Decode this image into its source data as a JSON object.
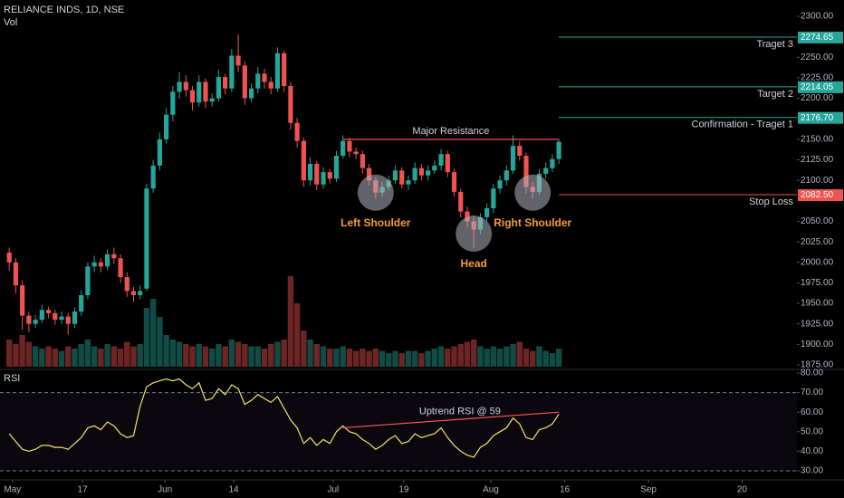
{
  "chart_data": {
    "type": "candlestick",
    "title": "RELIANCE INDS, 1D, NSE",
    "volume_label": "Vol",
    "rsi_label": "RSI",
    "up_color": "#26a69a",
    "down_color": "#ef5350",
    "xlim": [
      -1,
      119
    ],
    "xticks": [
      {
        "value": 0.5,
        "label": "May"
      },
      {
        "value": 11.2,
        "label": "17"
      },
      {
        "value": 23.8,
        "label": "Jun"
      },
      {
        "value": 34.3,
        "label": "14"
      },
      {
        "value": 49.5,
        "label": "Jul"
      },
      {
        "value": 60.3,
        "label": "19"
      },
      {
        "value": 73.6,
        "label": "Aug"
      },
      {
        "value": 84.9,
        "label": "16"
      },
      {
        "value": 97.7,
        "label": "Sep"
      },
      {
        "value": 112,
        "label": "20"
      }
    ],
    "ylim": [
      1875,
      2300
    ],
    "yticks": [
      {
        "value": 2300,
        "label": "2300.00"
      },
      {
        "value": 2250,
        "label": "2250.00"
      },
      {
        "value": 2225,
        "label": "2225.00"
      },
      {
        "value": 2200,
        "label": "2200.00"
      },
      {
        "value": 2150,
        "label": "2150.00"
      },
      {
        "value": 2125,
        "label": "2125.00"
      },
      {
        "value": 2100,
        "label": "2100.00"
      },
      {
        "value": 2050,
        "label": "2050.00"
      },
      {
        "value": 2025,
        "label": "2025.00"
      },
      {
        "value": 2000,
        "label": "2000.00"
      },
      {
        "value": 1975,
        "label": "1975.00"
      },
      {
        "value": 1950,
        "label": "1950.00"
      },
      {
        "value": 1925,
        "label": "1925.00"
      },
      {
        "value": 1900,
        "label": "1900.00"
      },
      {
        "value": 1875,
        "label": "1875.00"
      }
    ],
    "ohlc": [
      [
        2012,
        2018,
        1990,
        2000
      ],
      [
        2000,
        2005,
        1962,
        1972
      ],
      [
        1972,
        1978,
        1918,
        1935
      ],
      [
        1935,
        1940,
        1915,
        1925
      ],
      [
        1925,
        1936,
        1920,
        1930
      ],
      [
        1930,
        1948,
        1926,
        1942
      ],
      [
        1942,
        1946,
        1932,
        1938
      ],
      [
        1938,
        1942,
        1924,
        1930
      ],
      [
        1930,
        1940,
        1925,
        1934
      ],
      [
        1934,
        1938,
        1912,
        1925
      ],
      [
        1925,
        1945,
        1920,
        1940
      ],
      [
        1940,
        1966,
        1935,
        1960
      ],
      [
        1960,
        2000,
        1955,
        1995
      ],
      [
        1995,
        2008,
        1988,
        2000
      ],
      [
        2000,
        2005,
        1988,
        1995
      ],
      [
        1995,
        2016,
        1990,
        2010
      ],
      [
        2010,
        2018,
        1998,
        2005
      ],
      [
        2005,
        2010,
        1975,
        1982
      ],
      [
        1982,
        1988,
        1958,
        1965
      ],
      [
        1965,
        1970,
        1952,
        1960
      ],
      [
        1960,
        1972,
        1955,
        1965
      ],
      [
        1968,
        2096,
        1965,
        2090
      ],
      [
        2090,
        2125,
        2085,
        2118
      ],
      [
        2118,
        2158,
        2112,
        2150
      ],
      [
        2150,
        2188,
        2145,
        2180
      ],
      [
        2180,
        2215,
        2172,
        2208
      ],
      [
        2208,
        2232,
        2200,
        2220
      ],
      [
        2220,
        2228,
        2202,
        2210
      ],
      [
        2210,
        2215,
        2185,
        2195
      ],
      [
        2195,
        2228,
        2190,
        2220
      ],
      [
        2220,
        2224,
        2188,
        2196
      ],
      [
        2196,
        2206,
        2190,
        2200
      ],
      [
        2200,
        2235,
        2196,
        2226
      ],
      [
        2226,
        2230,
        2205,
        2212
      ],
      [
        2212,
        2260,
        2208,
        2252
      ],
      [
        2252,
        2278,
        2232,
        2240
      ],
      [
        2240,
        2245,
        2192,
        2200
      ],
      [
        2200,
        2218,
        2195,
        2212
      ],
      [
        2212,
        2238,
        2206,
        2230
      ],
      [
        2230,
        2236,
        2212,
        2220
      ],
      [
        2220,
        2226,
        2205,
        2212
      ],
      [
        2212,
        2262,
        2208,
        2255
      ],
      [
        2255,
        2258,
        2208,
        2215
      ],
      [
        2215,
        2220,
        2162,
        2170
      ],
      [
        2170,
        2176,
        2140,
        2148
      ],
      [
        2148,
        2152,
        2092,
        2100
      ],
      [
        2100,
        2128,
        2094,
        2120
      ],
      [
        2120,
        2124,
        2088,
        2095
      ],
      [
        2095,
        2116,
        2090,
        2110
      ],
      [
        2110,
        2114,
        2096,
        2102
      ],
      [
        2102,
        2136,
        2098,
        2130
      ],
      [
        2130,
        2155,
        2126,
        2148
      ],
      [
        2148,
        2152,
        2128,
        2135
      ],
      [
        2135,
        2140,
        2126,
        2132
      ],
      [
        2132,
        2136,
        2108,
        2115
      ],
      [
        2115,
        2120,
        2094,
        2100
      ],
      [
        2100,
        2104,
        2078,
        2085
      ],
      [
        2085,
        2098,
        2080,
        2092
      ],
      [
        2092,
        2106,
        2088,
        2100
      ],
      [
        2100,
        2118,
        2096,
        2112
      ],
      [
        2112,
        2116,
        2090,
        2095
      ],
      [
        2095,
        2106,
        2088,
        2100
      ],
      [
        2100,
        2122,
        2096,
        2115
      ],
      [
        2115,
        2120,
        2100,
        2106
      ],
      [
        2106,
        2118,
        2100,
        2112
      ],
      [
        2112,
        2124,
        2108,
        2118
      ],
      [
        2118,
        2138,
        2112,
        2132
      ],
      [
        2132,
        2136,
        2104,
        2110
      ],
      [
        2110,
        2114,
        2080,
        2086
      ],
      [
        2086,
        2090,
        2055,
        2062
      ],
      [
        2062,
        2068,
        2042,
        2050
      ],
      [
        2050,
        2056,
        2018,
        2040
      ],
      [
        2040,
        2060,
        2034,
        2055
      ],
      [
        2055,
        2072,
        2050,
        2066
      ],
      [
        2066,
        2096,
        2060,
        2090
      ],
      [
        2090,
        2106,
        2084,
        2100
      ],
      [
        2100,
        2118,
        2094,
        2112
      ],
      [
        2112,
        2155,
        2108,
        2142
      ],
      [
        2142,
        2148,
        2124,
        2130
      ],
      [
        2130,
        2134,
        2084,
        2092
      ],
      [
        2092,
        2098,
        2078,
        2086
      ],
      [
        2086,
        2114,
        2082,
        2108
      ],
      [
        2108,
        2122,
        2102,
        2115
      ],
      [
        2115,
        2132,
        2110,
        2126
      ],
      [
        2126,
        2150,
        2120,
        2147
      ]
    ],
    "volume": [
      12,
      10,
      14,
      11,
      9,
      8,
      9,
      8,
      7,
      9,
      8,
      10,
      12,
      9,
      8,
      10,
      9,
      8,
      11,
      9,
      10,
      26,
      30,
      22,
      14,
      12,
      11,
      10,
      9,
      10,
      9,
      8,
      10,
      9,
      12,
      11,
      10,
      9,
      9,
      8,
      10,
      11,
      12,
      40,
      28,
      16,
      12,
      10,
      9,
      8,
      8,
      9,
      8,
      7,
      8,
      7,
      8,
      7,
      6,
      7,
      6,
      7,
      7,
      6,
      7,
      8,
      9,
      8,
      9,
      10,
      11,
      12,
      9,
      8,
      9,
      8,
      9,
      10,
      11,
      8,
      7,
      9,
      7,
      6,
      8
    ],
    "rsi": {
      "color": "#f5e663",
      "values": [
        49,
        45,
        41,
        40,
        41,
        43,
        43,
        42,
        42,
        41,
        44,
        47,
        52,
        53,
        51,
        55,
        53,
        49,
        47,
        48,
        63,
        73,
        75,
        76,
        77,
        76,
        77,
        74,
        72,
        75,
        66,
        67,
        72,
        69,
        74,
        72,
        64,
        66,
        69,
        67,
        65,
        68,
        62,
        56,
        52,
        44,
        47,
        43,
        46,
        44,
        50,
        53,
        50,
        49,
        46,
        44,
        41,
        43,
        46,
        48,
        44,
        45,
        49,
        47,
        48,
        49,
        52,
        47,
        43,
        40,
        38,
        37,
        42,
        44,
        48,
        50,
        52,
        57,
        54,
        47,
        46,
        51,
        52,
        54,
        59
      ],
      "ylim": [
        30,
        80
      ],
      "yticks": [
        {
          "value": 80,
          "label": "80.00"
        },
        {
          "value": 70,
          "label": "70.00"
        },
        {
          "value": 60,
          "label": "60.00"
        },
        {
          "value": 50,
          "label": "50.00"
        },
        {
          "value": 40,
          "label": "40.00"
        },
        {
          "value": 30,
          "label": "30.00"
        }
      ],
      "band": [
        30,
        70
      ]
    },
    "levels": [
      {
        "label": "Traget 3",
        "value": 2274.65,
        "color": "#26a69a"
      },
      {
        "label": "Target 2",
        "value": 2214.05,
        "color": "#26a69a"
      },
      {
        "label": "Confirmation - Traget 1",
        "value": 2176.7,
        "value_label": "2176.70",
        "color": "#26a69a"
      },
      {
        "label": "Stop Loss",
        "value": 2082.5,
        "value_label": "2082.50",
        "color": "#ef5350"
      }
    ],
    "resistance": {
      "label": "Major Resistance",
      "value": 2150,
      "from": 51,
      "to": 84,
      "color": "#f7525f"
    },
    "rsi_trend": {
      "label": "Uptrend RSI @ 59",
      "from": [
        51,
        52
      ],
      "to": [
        84,
        60
      ],
      "color": "#f7525f"
    },
    "patterns": [
      {
        "label": "Left Shoulder",
        "index": 56,
        "price": 2085
      },
      {
        "label": "Head",
        "index": 71,
        "price": 2035
      },
      {
        "label": "Right Shoulder",
        "index": 80,
        "price": 2085
      }
    ]
  }
}
